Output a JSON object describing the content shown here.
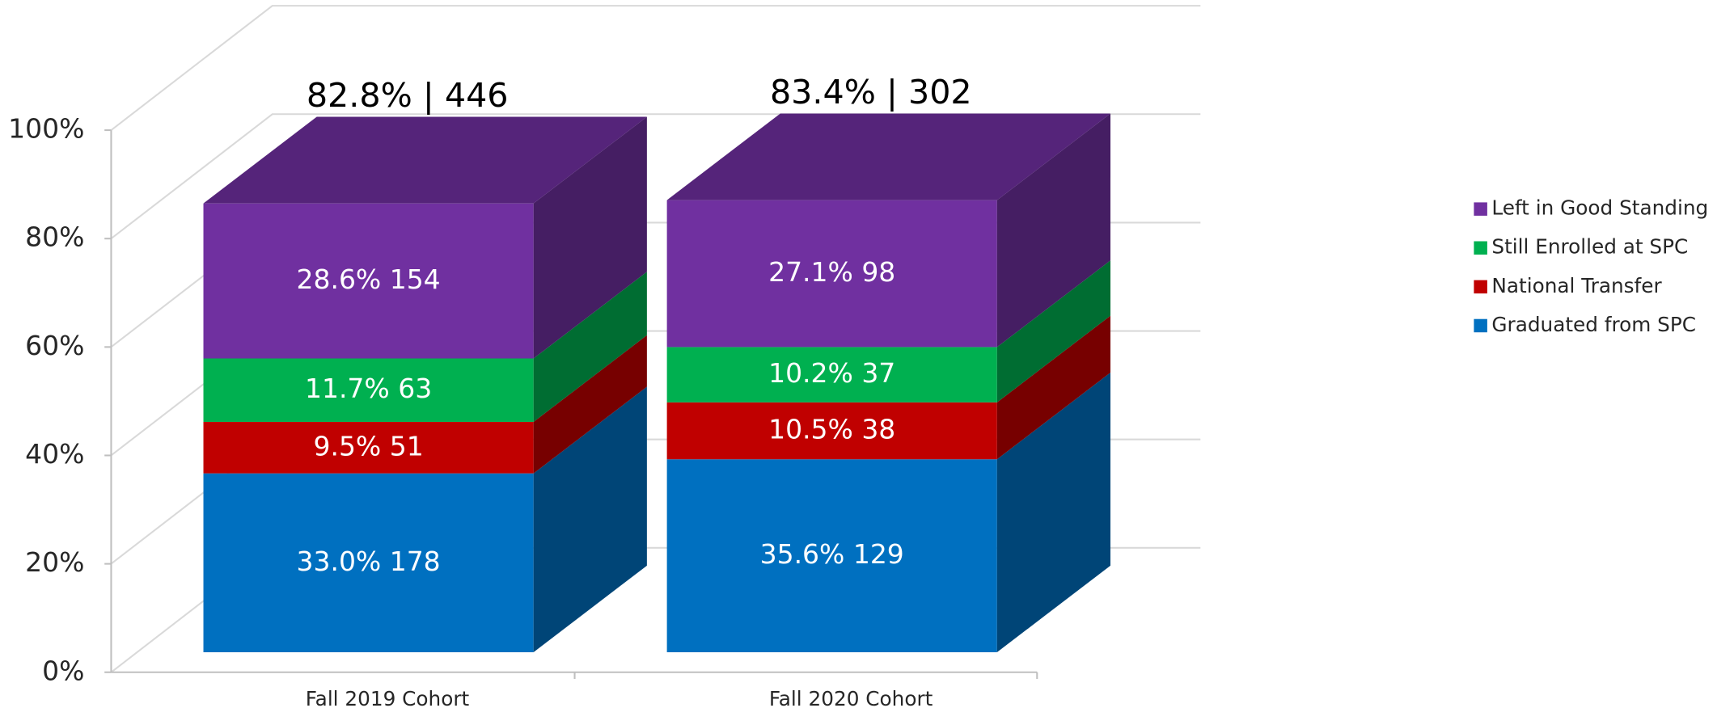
{
  "chart_data": {
    "type": "stacked-bar-3d",
    "categories": [
      "Fall 2019 Cohort",
      "Fall 2020 Cohort"
    ],
    "series": [
      {
        "name": "Graduated from SPC",
        "color": "#0070c0",
        "values": [
          33.0,
          35.6
        ],
        "value_labels": [
          "33.0% 178",
          "35.6% 129"
        ]
      },
      {
        "name": "National Transfer",
        "color": "#c00000",
        "values": [
          9.5,
          10.5
        ],
        "value_labels": [
          "9.5% 51",
          "10.5% 38"
        ]
      },
      {
        "name": "Still Enrolled at SPC",
        "color": "#00b050",
        "values": [
          11.7,
          10.2
        ],
        "value_labels": [
          "11.7% 63",
          "10.2% 37"
        ]
      },
      {
        "name": "Left in Good Standing",
        "color": "#7030a0",
        "values": [
          28.6,
          27.1
        ],
        "value_labels": [
          "28.6% 154",
          "27.1% 98"
        ]
      }
    ],
    "annotations": [
      "82.8% |  446",
      "83.4% |  302"
    ],
    "ylim": [
      0,
      100
    ],
    "yticks": [
      {
        "value": 0,
        "label": "0%"
      },
      {
        "value": 20,
        "label": "20%"
      },
      {
        "value": 40,
        "label": "40%"
      },
      {
        "value": 60,
        "label": "60%"
      },
      {
        "value": 80,
        "label": "80%"
      },
      {
        "value": 100,
        "label": "100%"
      }
    ],
    "grid": true,
    "legend": "right"
  }
}
